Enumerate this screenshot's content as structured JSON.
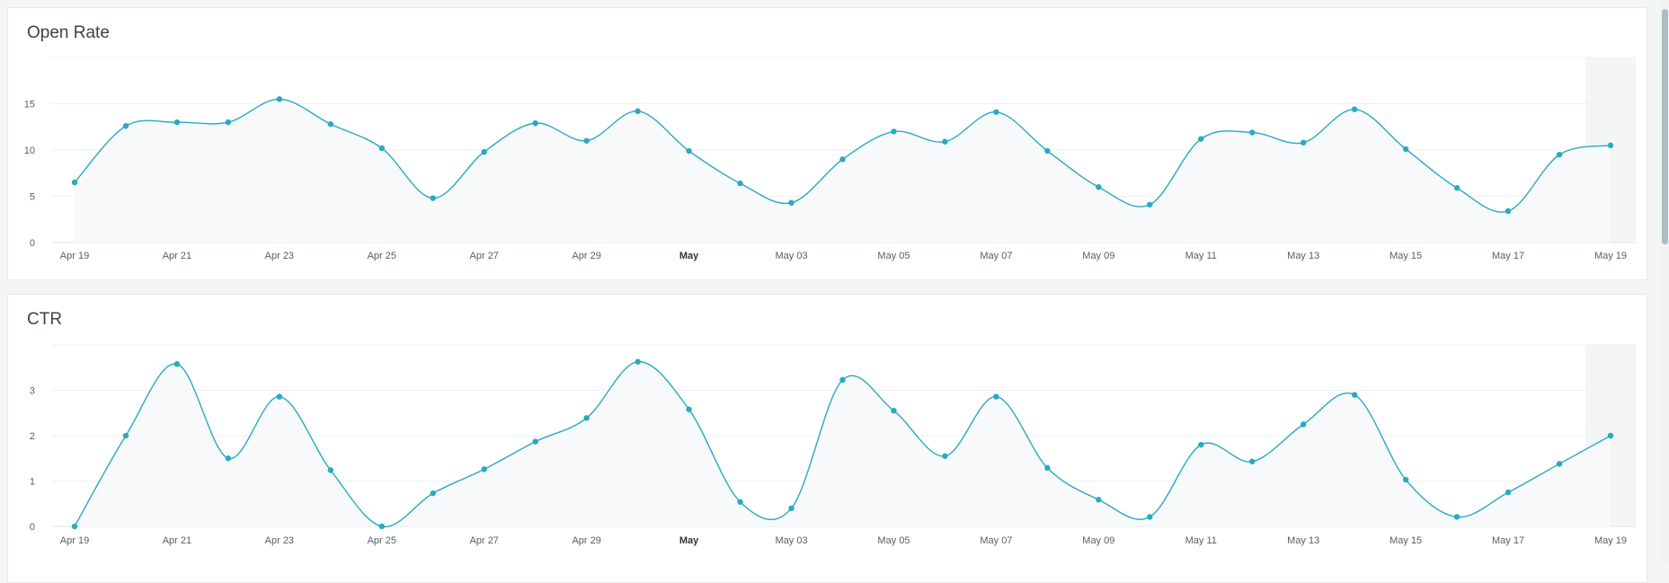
{
  "colors": {
    "line": "#2aa9c2",
    "grid": "#eef1f1",
    "shade": "#f4f6f5"
  },
  "chart_data": [
    {
      "type": "line",
      "title": "Open Rate",
      "x": [
        "Apr 19",
        "Apr 20",
        "Apr 21",
        "Apr 22",
        "Apr 23",
        "Apr 24",
        "Apr 25",
        "Apr 26",
        "Apr 27",
        "Apr 28",
        "Apr 29",
        "Apr 30",
        "May 01",
        "May 02",
        "May 03",
        "May 04",
        "May 05",
        "May 06",
        "May 07",
        "May 08",
        "May 09",
        "May 10",
        "May 11",
        "May 12",
        "May 13",
        "May 14",
        "May 15",
        "May 16",
        "May 17",
        "May 18",
        "May 19"
      ],
      "values": [
        6.5,
        12.6,
        13.0,
        13.0,
        15.5,
        12.8,
        10.2,
        4.8,
        9.8,
        12.9,
        11.0,
        14.2,
        9.9,
        6.4,
        4.3,
        9.0,
        12.0,
        10.9,
        14.1,
        9.9,
        6.0,
        4.1,
        11.2,
        11.9,
        10.8,
        14.4,
        10.1,
        5.9,
        3.4,
        9.5,
        10.5
      ],
      "xticks": [
        "Apr 19",
        "Apr 21",
        "Apr 23",
        "Apr 25",
        "Apr 27",
        "Apr 29",
        "May",
        "May 03",
        "May 05",
        "May 07",
        "May 09",
        "May 11",
        "May 13",
        "May 15",
        "May 17",
        "May 19"
      ],
      "yticks": [
        "0",
        "5",
        "10",
        "15"
      ],
      "ylim": [
        0,
        20
      ],
      "grid": true
    },
    {
      "type": "line",
      "title": "CTR",
      "x": [
        "Apr 19",
        "Apr 20",
        "Apr 21",
        "Apr 22",
        "Apr 23",
        "Apr 24",
        "Apr 25",
        "Apr 26",
        "Apr 27",
        "Apr 28",
        "Apr 29",
        "Apr 30",
        "May 01",
        "May 02",
        "May 03",
        "May 04",
        "May 05",
        "May 06",
        "May 07",
        "May 08",
        "May 09",
        "May 10",
        "May 11",
        "May 12",
        "May 13",
        "May 14",
        "May 15",
        "May 16",
        "May 17",
        "May 18",
        "May 19"
      ],
      "values": [
        0,
        2.0,
        3.58,
        1.5,
        2.86,
        1.24,
        0,
        0.73,
        1.26,
        1.87,
        2.39,
        3.63,
        2.58,
        0.54,
        0.4,
        3.23,
        2.55,
        1.55,
        2.86,
        1.29,
        0.59,
        0.21,
        1.8,
        1.43,
        2.25,
        2.9,
        1.03,
        0.21,
        0.75,
        1.38,
        2.0
      ],
      "xticks": [
        "Apr 19",
        "Apr 21",
        "Apr 23",
        "Apr 25",
        "Apr 27",
        "Apr 29",
        "May",
        "May 03",
        "May 05",
        "May 07",
        "May 09",
        "May 11",
        "May 13",
        "May 15",
        "May 17",
        "May 19"
      ],
      "yticks": [
        "0",
        "1",
        "2",
        "3"
      ],
      "ylim": [
        0,
        4
      ],
      "grid": true
    }
  ]
}
